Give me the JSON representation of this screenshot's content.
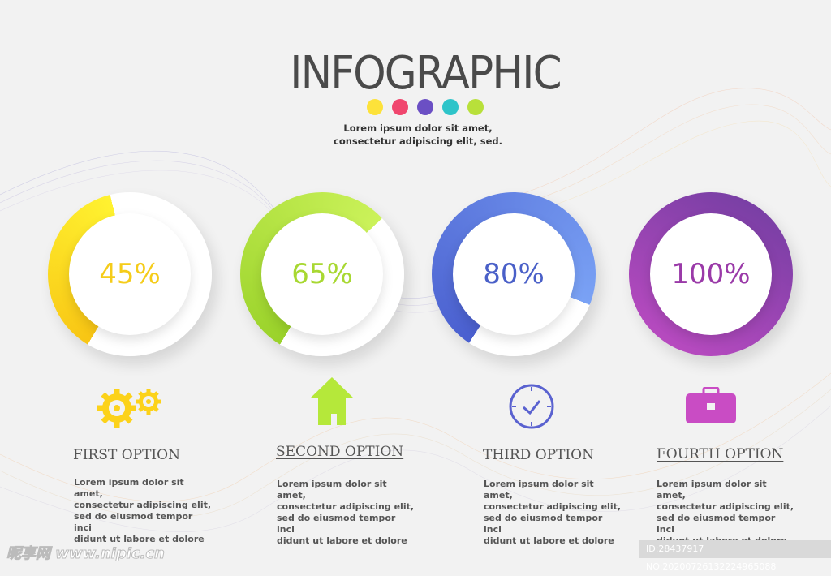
{
  "header": {
    "title": "INFOGRAPHIC",
    "subtitle_line1": "Lorem ipsum dolor sit amet,",
    "subtitle_line2": "consectetur adipiscing elit, sed.",
    "dot_colors": [
      "#fde23a",
      "#f0466e",
      "#6b4fc4",
      "#2ec4c9",
      "#b8e03a"
    ]
  },
  "options": [
    {
      "percent_label": "45%",
      "value": 45,
      "color": "#fcd21a",
      "text_color": "#f5cc1a",
      "icon": "gears-icon",
      "title": "FIRST OPTION",
      "desc": [
        "Lorem ipsum dolor sit amet,",
        "consectetur adipiscing elit,",
        "sed do eiusmod tempor inci",
        "didunt ut labore et dolore"
      ]
    },
    {
      "percent_label": "65%",
      "value": 65,
      "color": "#b5e83a",
      "text_color": "#a8d832",
      "icon": "house-icon",
      "title": "SECOND OPTION",
      "desc": [
        "Lorem ipsum dolor sit amet,",
        "consectetur adipiscing elit,",
        "sed do eiusmod tempor inci",
        "didunt ut labore et dolore"
      ]
    },
    {
      "percent_label": "80%",
      "value": 80,
      "color": "#5a78e0",
      "text_color": "#4a60c8",
      "icon": "clock-icon",
      "title": "THIRD OPTION",
      "desc": [
        "Lorem ipsum dolor sit amet,",
        "consectetur adipiscing elit,",
        "sed do eiusmod tempor inci",
        "didunt ut labore et dolore"
      ]
    },
    {
      "percent_label": "100%",
      "value": 100,
      "color": "#8a3fb0",
      "text_color": "#9a3aa8",
      "icon": "briefcase-icon",
      "title": "FOURTH OPTION",
      "desc": [
        "Lorem ipsum dolor sit amet,",
        "consectetur adipiscing elit,",
        "sed do eiusmod tempor inci",
        "didunt ut labore et dolore"
      ]
    }
  ],
  "watermark": {
    "logo": "昵享网 www.nipic.cn",
    "id": "ID:28437917 NO:20200726132224965088"
  }
}
